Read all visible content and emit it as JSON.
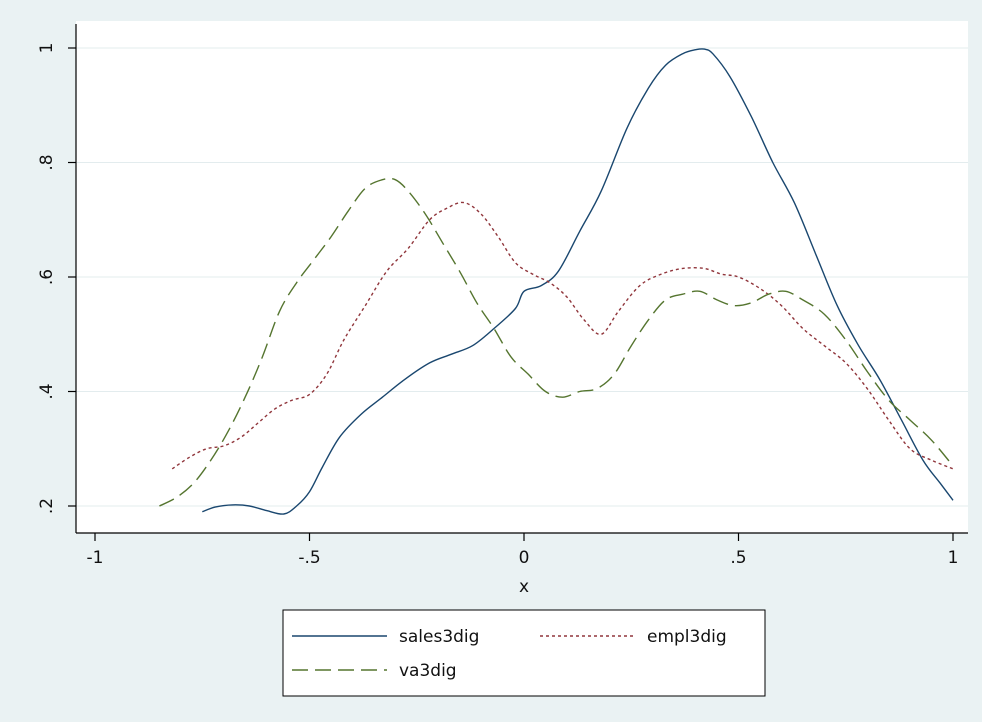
{
  "chart_data": {
    "type": "line",
    "xlabel": "x",
    "ylabel": "",
    "xlim": [
      -1,
      1
    ],
    "ylim": [
      0.2,
      1.0
    ],
    "xticks": [
      {
        "value": -1,
        "label": "-1"
      },
      {
        "value": -0.5,
        "label": "-.5"
      },
      {
        "value": 0,
        "label": "0"
      },
      {
        "value": 0.5,
        "label": ".5"
      },
      {
        "value": 1,
        "label": "1"
      }
    ],
    "yticks": [
      {
        "value": 0.2,
        "label": ".2"
      },
      {
        "value": 0.4,
        "label": ".4"
      },
      {
        "value": 0.6,
        "label": ".6"
      },
      {
        "value": 0.8,
        "label": ".8"
      },
      {
        "value": 1.0,
        "label": "1"
      }
    ],
    "grid": "horizontal",
    "legend": "bottom",
    "series": [
      {
        "name": "sales3dig",
        "color": "#1a476f",
        "dash": "solid",
        "x": [
          -0.75,
          -0.72,
          -0.68,
          -0.64,
          -0.6,
          -0.56,
          -0.53,
          -0.5,
          -0.47,
          -0.43,
          -0.38,
          -0.33,
          -0.28,
          -0.22,
          -0.17,
          -0.12,
          -0.07,
          -0.02,
          0.0,
          0.04,
          0.08,
          0.13,
          0.18,
          0.24,
          0.29,
          0.33,
          0.37,
          0.4,
          0.42,
          0.44,
          0.48,
          0.53,
          0.58,
          0.63,
          0.68,
          0.73,
          0.78,
          0.83,
          0.88,
          0.93,
          0.97,
          1.0
        ],
        "y": [
          0.19,
          0.198,
          0.202,
          0.2,
          0.192,
          0.186,
          0.2,
          0.225,
          0.268,
          0.32,
          0.36,
          0.39,
          0.42,
          0.45,
          0.465,
          0.48,
          0.51,
          0.545,
          0.575,
          0.585,
          0.61,
          0.68,
          0.75,
          0.86,
          0.93,
          0.97,
          0.99,
          0.997,
          0.998,
          0.99,
          0.95,
          0.88,
          0.8,
          0.73,
          0.64,
          0.55,
          0.48,
          0.42,
          0.35,
          0.28,
          0.24,
          0.21
        ]
      },
      {
        "name": "empl3dig",
        "color": "#90353b",
        "dash": "dotted",
        "x": [
          -0.82,
          -0.78,
          -0.74,
          -0.7,
          -0.66,
          -0.62,
          -0.58,
          -0.54,
          -0.5,
          -0.46,
          -0.42,
          -0.37,
          -0.32,
          -0.27,
          -0.22,
          -0.18,
          -0.14,
          -0.1,
          -0.06,
          -0.02,
          0.02,
          0.06,
          0.1,
          0.14,
          0.18,
          0.22,
          0.27,
          0.32,
          0.37,
          0.42,
          0.46,
          0.5,
          0.55,
          0.6,
          0.65,
          0.7,
          0.75,
          0.8,
          0.85,
          0.9,
          0.95,
          1.0
        ],
        "y": [
          0.265,
          0.285,
          0.3,
          0.305,
          0.32,
          0.345,
          0.37,
          0.385,
          0.395,
          0.43,
          0.49,
          0.55,
          0.61,
          0.65,
          0.7,
          0.72,
          0.73,
          0.71,
          0.67,
          0.625,
          0.605,
          0.59,
          0.565,
          0.525,
          0.5,
          0.54,
          0.585,
          0.605,
          0.615,
          0.615,
          0.605,
          0.6,
          0.58,
          0.55,
          0.51,
          0.48,
          0.45,
          0.405,
          0.35,
          0.3,
          0.28,
          0.265
        ]
      },
      {
        "name": "va3dig",
        "color": "#55752f",
        "dash": "dashed",
        "x": [
          -0.85,
          -0.81,
          -0.77,
          -0.73,
          -0.69,
          -0.65,
          -0.61,
          -0.57,
          -0.53,
          -0.49,
          -0.45,
          -0.41,
          -0.37,
          -0.33,
          -0.3,
          -0.27,
          -0.23,
          -0.19,
          -0.15,
          -0.11,
          -0.07,
          -0.03,
          0.01,
          0.05,
          0.09,
          0.13,
          0.17,
          0.21,
          0.25,
          0.29,
          0.33,
          0.37,
          0.41,
          0.45,
          0.49,
          0.53,
          0.57,
          0.61,
          0.65,
          0.7,
          0.75,
          0.8,
          0.85,
          0.9,
          0.95,
          1.0
        ],
        "y": [
          0.2,
          0.215,
          0.24,
          0.28,
          0.33,
          0.39,
          0.46,
          0.54,
          0.59,
          0.63,
          0.67,
          0.715,
          0.755,
          0.77,
          0.77,
          0.75,
          0.71,
          0.66,
          0.61,
          0.555,
          0.51,
          0.46,
          0.43,
          0.4,
          0.39,
          0.4,
          0.405,
          0.43,
          0.48,
          0.525,
          0.56,
          0.57,
          0.575,
          0.56,
          0.55,
          0.555,
          0.57,
          0.575,
          0.56,
          0.535,
          0.49,
          0.435,
          0.385,
          0.35,
          0.315,
          0.27
        ]
      }
    ]
  }
}
